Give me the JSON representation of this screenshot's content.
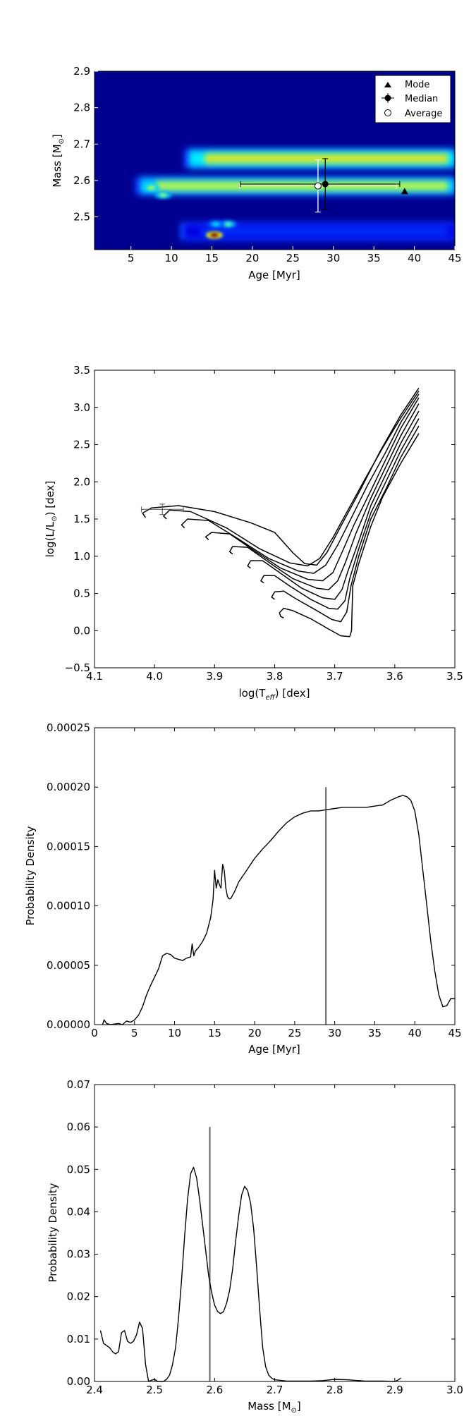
{
  "colors": {
    "heat_low": "#00008f",
    "curve": "#000000",
    "marker_line": "#666666"
  },
  "chart_data": [
    {
      "type": "heatmap",
      "xlabel": "Age [Myr]",
      "ylabel_prefix": "Mass [M",
      "ylabel_sub": "⊙",
      "ylabel_suffix": "]",
      "xlim": [
        0.5,
        45
      ],
      "ylim": [
        2.41,
        2.9
      ],
      "xticks": [
        5,
        10,
        15,
        20,
        25,
        30,
        35,
        40,
        45
      ],
      "yticks": [
        2.5,
        2.6,
        2.7,
        2.8,
        2.9
      ],
      "bands": [
        {
          "x0": 11.5,
          "x1": 45,
          "y": 2.66,
          "h": 0.045,
          "intensity": 0.65
        },
        {
          "x0": 5.5,
          "x1": 45,
          "y": 2.585,
          "h": 0.04,
          "intensity": 0.6
        },
        {
          "x0": 11,
          "x1": 45,
          "y": 2.46,
          "h": 0.04,
          "intensity": 0.18
        }
      ],
      "hotspots": [
        {
          "x": 15.3,
          "y": 2.45,
          "intensity": 1.0
        },
        {
          "x": 9.0,
          "y": 2.56,
          "intensity": 0.5
        },
        {
          "x": 7.5,
          "y": 2.58,
          "intensity": 0.55
        },
        {
          "x": 17.0,
          "y": 2.48,
          "intensity": 0.45
        },
        {
          "x": 15.5,
          "y": 2.48,
          "intensity": 0.35
        }
      ],
      "points": {
        "mode": {
          "age": 38.8,
          "mass": 2.57
        },
        "median": {
          "age": 29.0,
          "mass": 2.59,
          "age_err": [
            10.5,
            9.2
          ],
          "mass_err": [
            0.07,
            0.07
          ]
        },
        "average": {
          "age": 28.1,
          "mass": 2.585,
          "age_err": [
            9.7,
            9.7
          ],
          "mass_err": [
            0.072,
            0.072
          ]
        }
      },
      "legend": [
        "Mode",
        "Median",
        "Average"
      ],
      "legend_position": "top-right"
    },
    {
      "type": "line",
      "xlabel_prefix": "log(T",
      "xlabel_sub": "eff",
      "xlabel_suffix": ") [dex]",
      "ylabel_prefix": "log(L/L",
      "ylabel_sub": "⊙",
      "ylabel_suffix": ") [dex]",
      "xlim": [
        4.1,
        3.5
      ],
      "ylim": [
        -0.5,
        3.5
      ],
      "xticks": [
        "4.1",
        "4.0",
        "3.9",
        "3.8",
        "3.7",
        "3.6",
        "3.5"
      ],
      "yticks": [
        "−0.5",
        "0.0",
        "0.5",
        "1.0",
        "1.5",
        "2.0",
        "2.5",
        "3.0",
        "3.5"
      ],
      "series": [
        {
          "points": [
            [
              3.785,
              0.17
            ],
            [
              3.79,
              0.19
            ],
            [
              3.792,
              0.24
            ],
            [
              3.785,
              0.3
            ],
            [
              3.77,
              0.27
            ],
            [
              3.74,
              0.16
            ],
            [
              3.71,
              0.02
            ],
            [
              3.69,
              -0.07
            ],
            [
              3.675,
              -0.08
            ],
            [
              3.672,
              0.0
            ],
            [
              3.67,
              0.6
            ],
            [
              3.66,
              0.9
            ],
            [
              3.64,
              1.4
            ],
            [
              3.62,
              1.8
            ],
            [
              3.59,
              2.25
            ],
            [
              3.56,
              2.65
            ]
          ]
        },
        {
          "points": [
            [
              3.8,
              0.42
            ],
            [
              3.805,
              0.45
            ],
            [
              3.8,
              0.52
            ],
            [
              3.785,
              0.53
            ],
            [
              3.765,
              0.43
            ],
            [
              3.73,
              0.27
            ],
            [
              3.705,
              0.15
            ],
            [
              3.69,
              0.12
            ],
            [
              3.68,
              0.25
            ],
            [
              3.673,
              0.6
            ],
            [
              3.66,
              1.0
            ],
            [
              3.64,
              1.5
            ],
            [
              3.615,
              1.9
            ],
            [
              3.59,
              2.33
            ],
            [
              3.56,
              2.75
            ]
          ]
        },
        {
          "points": [
            [
              3.818,
              0.64
            ],
            [
              3.823,
              0.67
            ],
            [
              3.818,
              0.74
            ],
            [
              3.8,
              0.74
            ],
            [
              3.775,
              0.6
            ],
            [
              3.74,
              0.42
            ],
            [
              3.71,
              0.3
            ],
            [
              3.695,
              0.29
            ],
            [
              3.683,
              0.4
            ],
            [
              3.675,
              0.7
            ],
            [
              3.66,
              1.1
            ],
            [
              3.64,
              1.58
            ],
            [
              3.615,
              2.0
            ],
            [
              3.59,
              2.42
            ],
            [
              3.56,
              2.85
            ]
          ]
        },
        {
          "points": [
            [
              3.84,
              0.84
            ],
            [
              3.845,
              0.87
            ],
            [
              3.84,
              0.94
            ],
            [
              3.82,
              0.94
            ],
            [
              3.79,
              0.77
            ],
            [
              3.755,
              0.57
            ],
            [
              3.72,
              0.44
            ],
            [
              3.7,
              0.42
            ],
            [
              3.688,
              0.55
            ],
            [
              3.678,
              0.8
            ],
            [
              3.66,
              1.2
            ],
            [
              3.64,
              1.68
            ],
            [
              3.615,
              2.1
            ],
            [
              3.59,
              2.52
            ],
            [
              3.56,
              2.95
            ]
          ]
        },
        {
          "points": [
            [
              3.87,
              1.03
            ],
            [
              3.875,
              1.06
            ],
            [
              3.87,
              1.13
            ],
            [
              3.845,
              1.12
            ],
            [
              3.81,
              0.92
            ],
            [
              3.77,
              0.7
            ],
            [
              3.73,
              0.57
            ],
            [
              3.71,
              0.55
            ],
            [
              3.695,
              0.67
            ],
            [
              3.682,
              0.92
            ],
            [
              3.665,
              1.3
            ],
            [
              3.64,
              1.78
            ],
            [
              3.615,
              2.2
            ],
            [
              3.59,
              2.62
            ],
            [
              3.56,
              3.05
            ]
          ]
        },
        {
          "points": [
            [
              3.91,
              1.22
            ],
            [
              3.915,
              1.26
            ],
            [
              3.905,
              1.32
            ],
            [
              3.875,
              1.3
            ],
            [
              3.835,
              1.08
            ],
            [
              3.79,
              0.84
            ],
            [
              3.745,
              0.69
            ],
            [
              3.72,
              0.67
            ],
            [
              3.703,
              0.78
            ],
            [
              3.688,
              1.05
            ],
            [
              3.668,
              1.42
            ],
            [
              3.64,
              1.88
            ],
            [
              3.615,
              2.3
            ],
            [
              3.59,
              2.72
            ],
            [
              3.56,
              3.13
            ]
          ]
        },
        {
          "points": [
            [
              3.95,
              1.38
            ],
            [
              3.955,
              1.42
            ],
            [
              3.945,
              1.5
            ],
            [
              3.91,
              1.48
            ],
            [
              3.86,
              1.23
            ],
            [
              3.81,
              0.97
            ],
            [
              3.76,
              0.8
            ],
            [
              3.735,
              0.77
            ],
            [
              3.715,
              0.88
            ],
            [
              3.695,
              1.15
            ],
            [
              3.672,
              1.52
            ],
            [
              3.645,
              1.96
            ],
            [
              3.615,
              2.4
            ],
            [
              3.59,
              2.8
            ],
            [
              3.56,
              3.18
            ]
          ]
        },
        {
          "points": [
            [
              3.98,
              1.5
            ],
            [
              3.985,
              1.54
            ],
            [
              3.975,
              1.62
            ],
            [
              3.94,
              1.6
            ],
            [
              3.88,
              1.38
            ],
            [
              3.825,
              1.1
            ],
            [
              3.775,
              0.91
            ],
            [
              3.745,
              0.87
            ],
            [
              3.725,
              0.97
            ],
            [
              3.703,
              1.25
            ],
            [
              3.678,
              1.62
            ],
            [
              3.648,
              2.06
            ],
            [
              3.62,
              2.46
            ],
            [
              3.59,
              2.86
            ],
            [
              3.56,
              3.22
            ]
          ]
        },
        {
          "points": [
            [
              4.015,
              1.52
            ],
            [
              4.02,
              1.58
            ],
            [
              4.005,
              1.65
            ],
            [
              3.96,
              1.68
            ],
            [
              3.9,
              1.6
            ],
            [
              3.84,
              1.45
            ],
            [
              3.8,
              1.32
            ],
            [
              3.77,
              1.05
            ],
            [
              3.75,
              0.9
            ],
            [
              3.73,
              0.88
            ],
            [
              3.713,
              1.05
            ],
            [
              3.69,
              1.4
            ],
            [
              3.66,
              1.85
            ],
            [
              3.625,
              2.4
            ],
            [
              3.59,
              2.9
            ],
            [
              3.56,
              3.26
            ]
          ]
        }
      ],
      "star": {
        "logT": 3.987,
        "logL": 1.63,
        "logT_err": [
          0.035,
          0.035
        ],
        "logL_err": [
          0.07,
          0.07
        ]
      }
    },
    {
      "type": "line",
      "xlabel": "Age [Myr]",
      "ylabel": "Probability Density",
      "xlim": [
        0,
        45
      ],
      "ylim": [
        0,
        0.00025
      ],
      "xticks": [
        "0",
        "5",
        "10",
        "15",
        "20",
        "25",
        "30",
        "35",
        "40",
        "45"
      ],
      "yticks": [
        "0.00000",
        "0.00005",
        "0.00010",
        "0.00015",
        "0.00020",
        "0.00025"
      ],
      "marker": {
        "x": 28.9,
        "y": 0.0002
      },
      "x": [
        1.0,
        1.2,
        1.5,
        2,
        3,
        3.5,
        4,
        4.5,
        5,
        5.5,
        6,
        6.5,
        7,
        7.5,
        8,
        8.5,
        9,
        9.5,
        10,
        10.5,
        11,
        11.5,
        12,
        12.2,
        12.4,
        12.6,
        13,
        13.5,
        14,
        14.5,
        14.8,
        15,
        15.2,
        15.4,
        15.6,
        15.8,
        16,
        16.2,
        16.4,
        16.6,
        16.8,
        17,
        17.5,
        18,
        19,
        20,
        21,
        22,
        23,
        24,
        25,
        26,
        27,
        28,
        29,
        30,
        31,
        32,
        33,
        34,
        35,
        36,
        37,
        38,
        38.5,
        39,
        39.5,
        40,
        40.5,
        41,
        41.5,
        42,
        42.5,
        43,
        43.5,
        44,
        44.5,
        45
      ],
      "values": [
        0.0,
        4e-06,
        1e-06,
        0.0,
        1e-06,
        0.0,
        3e-06,
        2e-06,
        4e-06,
        8e-06,
        1.5e-05,
        2.5e-05,
        3.3e-05,
        4e-05,
        4.7e-05,
        5.8e-05,
        6e-05,
        5.9e-05,
        5.6e-05,
        5.5e-05,
        5.4e-05,
        5.6e-05,
        5.7e-05,
        6.8e-05,
        5.8e-05,
        6.2e-05,
        6.5e-05,
        7e-05,
        7.7e-05,
        9e-05,
        0.000105,
        0.00013,
        0.000115,
        0.000122,
        0.000118,
        0.000115,
        0.000135,
        0.00013,
        0.000115,
        0.000108,
        0.000106,
        0.000106,
        0.000112,
        0.00012,
        0.00013,
        0.00014,
        0.000148,
        0.000155,
        0.000163,
        0.00017,
        0.000175,
        0.000178,
        0.00018,
        0.00018,
        0.000181,
        0.000182,
        0.000183,
        0.000183,
        0.000183,
        0.000183,
        0.000184,
        0.000185,
        0.000189,
        0.000192,
        0.000193,
        0.000192,
        0.000189,
        0.00018,
        0.00016,
        0.00013,
        0.0001,
        7e-05,
        4.5e-05,
        2.5e-05,
        1.5e-05,
        1.6e-05,
        2.2e-05,
        2.2e-05
      ]
    },
    {
      "type": "line",
      "xlabel_prefix": "Mass [M",
      "xlabel_sub": "⊙",
      "xlabel_suffix": "]",
      "ylabel": "Probability Density",
      "xlim": [
        2.4,
        3.0
      ],
      "ylim": [
        0,
        0.07
      ],
      "xticks": [
        "2.4",
        "2.5",
        "2.6",
        "2.7",
        "2.8",
        "2.9",
        "3.0"
      ],
      "yticks": [
        "0.00",
        "0.01",
        "0.02",
        "0.03",
        "0.04",
        "0.05",
        "0.06",
        "0.07"
      ],
      "marker": {
        "x": 2.592,
        "y": 0.06
      },
      "x": [
        2.41,
        2.415,
        2.42,
        2.425,
        2.43,
        2.435,
        2.44,
        2.445,
        2.45,
        2.455,
        2.46,
        2.465,
        2.47,
        2.475,
        2.48,
        2.485,
        2.49,
        2.495,
        2.5,
        2.505,
        2.51,
        2.515,
        2.52,
        2.525,
        2.53,
        2.535,
        2.54,
        2.545,
        2.55,
        2.555,
        2.56,
        2.565,
        2.57,
        2.575,
        2.58,
        2.585,
        2.59,
        2.595,
        2.6,
        2.605,
        2.61,
        2.615,
        2.62,
        2.625,
        2.63,
        2.635,
        2.64,
        2.645,
        2.65,
        2.655,
        2.66,
        2.665,
        2.67,
        2.675,
        2.68,
        2.685,
        2.69,
        2.695,
        2.7,
        2.72,
        2.76,
        2.78,
        2.8,
        2.82,
        2.85,
        2.88,
        2.9,
        2.905,
        2.91
      ],
      "values": [
        0.012,
        0.009,
        0.0085,
        0.008,
        0.007,
        0.0065,
        0.007,
        0.0115,
        0.012,
        0.0095,
        0.009,
        0.0095,
        0.011,
        0.014,
        0.0125,
        0.004,
        0.0,
        0.0003,
        0.0005,
        0.0,
        0.0,
        0.0,
        0.0005,
        0.0015,
        0.004,
        0.008,
        0.015,
        0.024,
        0.034,
        0.043,
        0.049,
        0.0505,
        0.048,
        0.043,
        0.037,
        0.031,
        0.025,
        0.021,
        0.018,
        0.0165,
        0.016,
        0.0165,
        0.0185,
        0.0215,
        0.0265,
        0.033,
        0.039,
        0.044,
        0.046,
        0.045,
        0.042,
        0.036,
        0.027,
        0.017,
        0.008,
        0.0035,
        0.0015,
        0.0008,
        0.0004,
        0.0001,
        0.0001,
        0.0002,
        0.0005,
        0.0004,
        0.0001,
        0.0001,
        0.0,
        0.0003,
        0.0008
      ]
    }
  ]
}
